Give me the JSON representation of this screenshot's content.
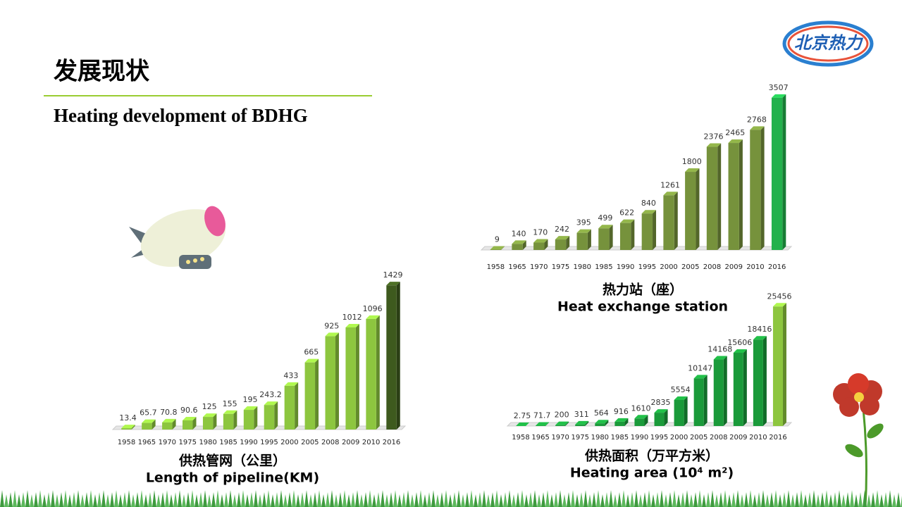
{
  "header": {
    "title": "发展现状",
    "subtitle": "Heating development of BDHG",
    "logo": "北京热力"
  },
  "chart_data": [
    {
      "type": "bar",
      "title": "供热管网（公里）",
      "subtitle": "Length of pipeline(KM)",
      "categories": [
        "1958",
        "1965",
        "1970",
        "1975",
        "1980",
        "1985",
        "1990",
        "1995",
        "2000",
        "2005",
        "2008",
        "2009",
        "2010",
        "2016"
      ],
      "values": [
        13.4,
        65.7,
        70.8,
        90.6,
        125,
        155,
        195,
        243.2,
        433,
        665,
        925,
        1012,
        1096,
        1429
      ],
      "colors": [
        "#8dc63f",
        "#8dc63f",
        "#8dc63f",
        "#8dc63f",
        "#8dc63f",
        "#8dc63f",
        "#8dc63f",
        "#8dc63f",
        "#8dc63f",
        "#8dc63f",
        "#8dc63f",
        "#8dc63f",
        "#8dc63f",
        "#3e5a1e"
      ],
      "ylim": [
        0,
        1500
      ]
    },
    {
      "type": "bar",
      "title": "热力站（座）",
      "subtitle": "Heat exchange station",
      "categories": [
        "1958",
        "1965",
        "1970",
        "1975",
        "1980",
        "1985",
        "1990",
        "1995",
        "2000",
        "2005",
        "2008",
        "2009",
        "2010",
        "2016"
      ],
      "values": [
        9,
        140,
        170,
        242,
        395,
        499,
        622,
        840,
        1261,
        1800,
        2376,
        2465,
        2768,
        3507
      ],
      "colors": [
        "#76923c",
        "#76923c",
        "#76923c",
        "#76923c",
        "#76923c",
        "#76923c",
        "#76923c",
        "#76923c",
        "#76923c",
        "#76923c",
        "#76923c",
        "#76923c",
        "#76923c",
        "#22b14c"
      ],
      "ylim": [
        0,
        3650
      ]
    },
    {
      "type": "bar",
      "title": "供热面积（万平方米）",
      "subtitle": "Heating area (10⁴ m²)",
      "categories": [
        "1958",
        "1965",
        "1970",
        "1975",
        "1980",
        "1985",
        "1990",
        "1995",
        "2000",
        "2005",
        "2008",
        "2009",
        "2010",
        "2016"
      ],
      "values": [
        2.75,
        71.7,
        200,
        311,
        564,
        916,
        1610,
        2835,
        5554,
        10147,
        14168,
        15606,
        18416,
        25456
      ],
      "colors": [
        "#1a9a3a",
        "#1a9a3a",
        "#1a9a3a",
        "#1a9a3a",
        "#1a9a3a",
        "#1a9a3a",
        "#1a9a3a",
        "#1a9a3a",
        "#1a9a3a",
        "#1a9a3a",
        "#1a9a3a",
        "#1a9a3a",
        "#1a9a3a",
        "#8dc63f"
      ],
      "ylim": [
        0,
        27000
      ]
    }
  ]
}
